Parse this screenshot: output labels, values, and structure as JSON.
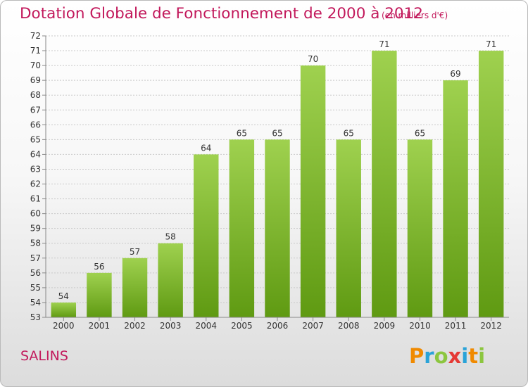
{
  "title": "Dotation Globale de Fonctionnement de 2000 à 2012",
  "unit_note": "(en milliers d'€)",
  "commune": "SALINS",
  "logo": {
    "letters": [
      "P",
      "r",
      "o",
      "x",
      "i",
      "t",
      "i"
    ],
    "colors": [
      "#f08a00",
      "#2aa3d8",
      "#8cc63f",
      "#e53935",
      "#2aa3d8",
      "#f08a00",
      "#8cc63f"
    ]
  },
  "colors": {
    "accent": "#c2185b",
    "bar_top": "#9fd14f",
    "bar_bottom": "#5f9a12"
  },
  "chart_data": {
    "type": "bar",
    "title": "Dotation Globale de Fonctionnement de 2000 à 2012",
    "categories": [
      "2000",
      "2001",
      "2002",
      "2003",
      "2004",
      "2005",
      "2006",
      "2007",
      "2008",
      "2009",
      "2010",
      "2011",
      "2012"
    ],
    "values": [
      54,
      56,
      57,
      58,
      64,
      65,
      65,
      70,
      65,
      71,
      65,
      69,
      71
    ],
    "ylim": [
      53,
      72
    ],
    "yticks": [
      53,
      54,
      55,
      56,
      57,
      58,
      59,
      60,
      61,
      62,
      63,
      64,
      65,
      66,
      67,
      68,
      69,
      70,
      71,
      72
    ],
    "grid": true,
    "data_labels": true
  }
}
